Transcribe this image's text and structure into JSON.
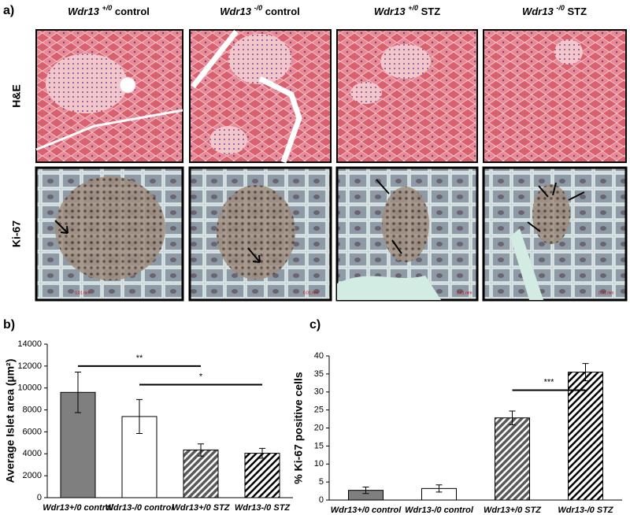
{
  "panel_a": {
    "label": "a)",
    "columns": [
      {
        "gene": "Wdr13",
        "genotype": "+/0",
        "condition": "control"
      },
      {
        "gene": "Wdr13",
        "genotype": "-/0",
        "condition": "control"
      },
      {
        "gene": "Wdr13",
        "genotype": "+/0",
        "condition": "STZ"
      },
      {
        "gene": "Wdr13",
        "genotype": "-/0",
        "condition": "STZ"
      }
    ],
    "rows": [
      "H&E",
      "Ki-67"
    ],
    "scale_bar": "0.01 mm"
  },
  "chart_data": [
    {
      "type": "bar",
      "panel_label": "b)",
      "y_label": "Average Islet area (µm²)",
      "categories": [
        "Wdr13+/0 control",
        "Wdr13-/0 control",
        "Wdr13+/0 STZ",
        "Wdr13-/0 STZ"
      ],
      "values": [
        9600,
        7400,
        4350,
        4050
      ],
      "errors": [
        1850,
        1550,
        550,
        450
      ],
      "colors": [
        "#7f7f7f",
        "#ffffff",
        "#595959",
        "#ffffff"
      ],
      "hatch": [
        false,
        false,
        true,
        true
      ],
      "ylim": [
        0,
        14000
      ],
      "yticks": [
        0,
        2000,
        4000,
        6000,
        8000,
        10000,
        12000,
        14000
      ],
      "annotations": [
        {
          "text": "**",
          "y": 12000
        },
        {
          "text": "*",
          "y": 10300
        }
      ]
    },
    {
      "type": "bar",
      "panel_label": "c)",
      "y_label": "% Ki-67 positive cells",
      "categories": [
        "Wdr13+/0 control",
        "Wdr13-/0 control",
        "Wdr13+/0 STZ",
        "Wdr13-/0 STZ"
      ],
      "values": [
        2.7,
        3.2,
        22.8,
        35.5
      ],
      "errors": [
        0.9,
        1.0,
        1.9,
        2.4
      ],
      "colors": [
        "#7f7f7f",
        "#ffffff",
        "#595959",
        "#ffffff"
      ],
      "hatch": [
        false,
        false,
        true,
        true
      ],
      "ylim": [
        0,
        40
      ],
      "yticks": [
        0,
        5,
        10,
        15,
        20,
        25,
        30,
        35,
        40
      ],
      "annotations": [
        {
          "text": "***",
          "y": 30.5
        }
      ]
    }
  ]
}
